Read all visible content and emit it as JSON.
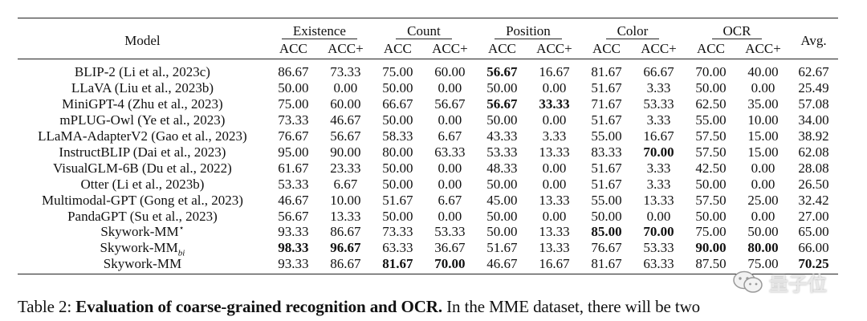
{
  "table": {
    "header": {
      "model": "Model",
      "avg": "Avg.",
      "groups": [
        {
          "label": "Existence",
          "sub": [
            "ACC",
            "ACC+"
          ]
        },
        {
          "label": "Count",
          "sub": [
            "ACC",
            "ACC+"
          ]
        },
        {
          "label": "Position",
          "sub": [
            "ACC",
            "ACC+"
          ]
        },
        {
          "label": "Color",
          "sub": [
            "ACC",
            "ACC+"
          ]
        },
        {
          "label": "OCR",
          "sub": [
            "ACC",
            "ACC+"
          ]
        }
      ]
    },
    "rows": [
      {
        "model": "BLIP-2 (Li et al., 2023c)",
        "values": [
          "86.67",
          "73.33",
          "75.00",
          "60.00",
          "56.67",
          "16.67",
          "81.67",
          "66.67",
          "70.00",
          "40.00",
          "62.67"
        ],
        "bold": [
          4
        ]
      },
      {
        "model": "LLaVA (Liu et al., 2023b)",
        "values": [
          "50.00",
          "0.00",
          "50.00",
          "0.00",
          "50.00",
          "0.00",
          "51.67",
          "3.33",
          "50.00",
          "0.00",
          "25.49"
        ],
        "bold": []
      },
      {
        "model": "MiniGPT-4 (Zhu et al., 2023)",
        "values": [
          "75.00",
          "60.00",
          "66.67",
          "56.67",
          "56.67",
          "33.33",
          "71.67",
          "53.33",
          "62.50",
          "35.00",
          "57.08"
        ],
        "bold": [
          4,
          5
        ]
      },
      {
        "model": "mPLUG-Owl (Ye et al., 2023)",
        "values": [
          "73.33",
          "46.67",
          "50.00",
          "0.00",
          "50.00",
          "0.00",
          "51.67",
          "3.33",
          "55.00",
          "10.00",
          "34.00"
        ],
        "bold": []
      },
      {
        "model": "LLaMA-AdapterV2 (Gao et al., 2023)",
        "values": [
          "76.67",
          "56.67",
          "58.33",
          "6.67",
          "43.33",
          "3.33",
          "55.00",
          "16.67",
          "57.50",
          "15.00",
          "38.92"
        ],
        "bold": []
      },
      {
        "model": "InstructBLIP (Dai et al., 2023)",
        "values": [
          "95.00",
          "90.00",
          "80.00",
          "63.33",
          "53.33",
          "13.33",
          "83.33",
          "70.00",
          "57.50",
          "15.00",
          "62.08"
        ],
        "bold": [
          7
        ]
      },
      {
        "model": "VisualGLM-6B (Du et al., 2022)",
        "values": [
          "61.67",
          "23.33",
          "50.00",
          "0.00",
          "48.33",
          "0.00",
          "51.67",
          "3.33",
          "42.50",
          "0.00",
          "28.08"
        ],
        "bold": []
      },
      {
        "model": "Otter (Li et al., 2023b)",
        "values": [
          "53.33",
          "6.67",
          "50.00",
          "0.00",
          "50.00",
          "0.00",
          "51.67",
          "3.33",
          "50.00",
          "0.00",
          "26.50"
        ],
        "bold": []
      },
      {
        "model": "Multimodal-GPT (Gong et al., 2023)",
        "values": [
          "46.67",
          "10.00",
          "51.67",
          "6.67",
          "45.00",
          "13.33",
          "55.00",
          "13.33",
          "57.50",
          "25.00",
          "32.42"
        ],
        "bold": []
      },
      {
        "model": "PandaGPT (Su et al., 2023)",
        "values": [
          "56.67",
          "13.33",
          "50.00",
          "0.00",
          "50.00",
          "0.00",
          "50.00",
          "0.00",
          "50.00",
          "0.00",
          "27.00"
        ],
        "bold": []
      },
      {
        "model": "Skywork-MM",
        "model_sup": "⋆",
        "values": [
          "93.33",
          "86.67",
          "73.33",
          "53.33",
          "50.00",
          "13.33",
          "85.00",
          "70.00",
          "75.00",
          "50.00",
          "65.00"
        ],
        "bold": [
          6,
          7
        ]
      },
      {
        "model": "Skywork-MM",
        "model_sub": "bi",
        "values": [
          "98.33",
          "96.67",
          "63.33",
          "36.67",
          "51.67",
          "13.33",
          "76.67",
          "53.33",
          "90.00",
          "80.00",
          "66.00"
        ],
        "bold": [
          0,
          1,
          8,
          9
        ]
      },
      {
        "model": "Skywork-MM",
        "values": [
          "93.33",
          "86.67",
          "81.67",
          "70.00",
          "46.67",
          "16.67",
          "81.67",
          "63.33",
          "87.50",
          "75.00",
          "70.25"
        ],
        "bold": [
          2,
          3,
          10
        ]
      }
    ]
  },
  "caption": {
    "prefix": "Table 2: ",
    "bold": "Evaluation of coarse-grained recognition and OCR.",
    "rest": " In the MME dataset, there will be two"
  },
  "watermark": {
    "text": "量子位",
    "icon": "wechat-icon"
  }
}
